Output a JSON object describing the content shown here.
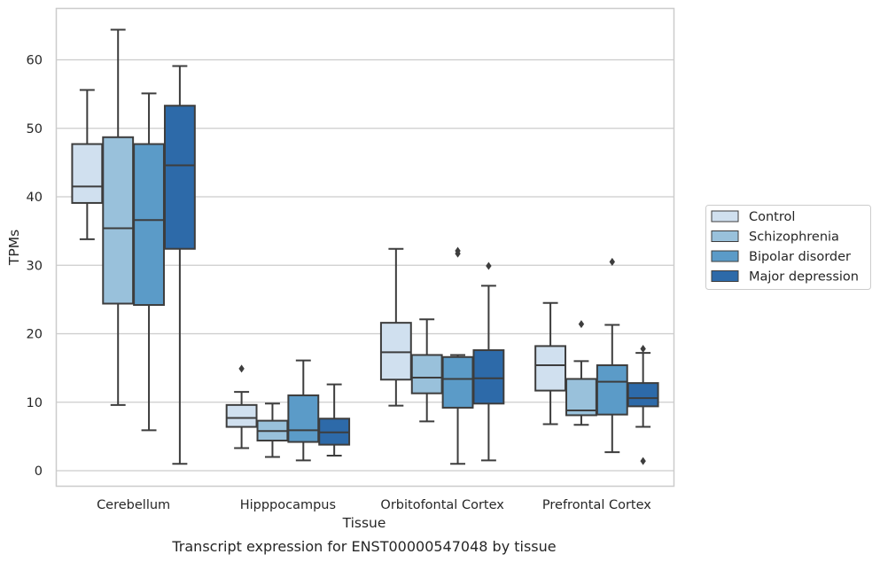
{
  "chart_data": {
    "type": "box",
    "title": "",
    "caption": "Transcript expression for ENST00000547048 by tissue",
    "xlabel": "Tissue",
    "ylabel": "TPMs",
    "ylim": [
      -2,
      67
    ],
    "yticks": [
      0,
      10,
      20,
      30,
      40,
      50,
      60
    ],
    "grid": "horizontal",
    "legend_position": "right",
    "categories": [
      "Cerebellum",
      "Hipppocampus",
      "Orbitofontal Cortex",
      "Prefrontal Cortex"
    ],
    "series": [
      {
        "name": "Control",
        "color": "#d0e0ef",
        "boxes": [
          {
            "whislo": 33.8,
            "q1": 39.1,
            "med": 41.5,
            "q3": 47.7,
            "whishi": 55.6,
            "fliers": []
          },
          {
            "whislo": 3.3,
            "q1": 6.4,
            "med": 7.7,
            "q3": 9.6,
            "whishi": 11.5,
            "fliers": [
              14.9
            ]
          },
          {
            "whislo": 9.5,
            "q1": 13.3,
            "med": 17.3,
            "q3": 21.6,
            "whishi": 32.4,
            "fliers": []
          },
          {
            "whislo": 6.8,
            "q1": 11.7,
            "med": 15.4,
            "q3": 18.2,
            "whishi": 24.5,
            "fliers": []
          }
        ]
      },
      {
        "name": "Schizophrenia",
        "color": "#99c1db",
        "boxes": [
          {
            "whislo": 9.6,
            "q1": 24.4,
            "med": 35.4,
            "q3": 48.7,
            "whishi": 64.4,
            "fliers": []
          },
          {
            "whislo": 2.0,
            "q1": 4.4,
            "med": 5.8,
            "q3": 7.3,
            "whishi": 9.8,
            "fliers": []
          },
          {
            "whislo": 7.2,
            "q1": 11.3,
            "med": 13.6,
            "q3": 16.9,
            "whishi": 22.1,
            "fliers": []
          },
          {
            "whislo": 6.7,
            "q1": 8.1,
            "med": 8.8,
            "q3": 13.4,
            "whishi": 16.0,
            "fliers": [
              21.4
            ]
          }
        ]
      },
      {
        "name": "Bipolar disorder",
        "color": "#5b9bc8",
        "boxes": [
          {
            "whislo": 5.9,
            "q1": 24.2,
            "med": 36.6,
            "q3": 47.7,
            "whishi": 55.1,
            "fliers": []
          },
          {
            "whislo": 1.5,
            "q1": 4.2,
            "med": 5.9,
            "q3": 11.0,
            "whishi": 16.1,
            "fliers": []
          },
          {
            "whislo": 1.0,
            "q1": 9.2,
            "med": 13.4,
            "q3": 16.6,
            "whishi": 16.9,
            "fliers": [
              31.7,
              32.1
            ]
          },
          {
            "whislo": 2.7,
            "q1": 8.2,
            "med": 13.0,
            "q3": 15.4,
            "whishi": 21.3,
            "fliers": [
              30.5
            ]
          }
        ]
      },
      {
        "name": "Major depression",
        "color": "#2d6aa9",
        "boxes": [
          {
            "whislo": 1.0,
            "q1": 32.4,
            "med": 44.6,
            "q3": 53.3,
            "whishi": 59.1,
            "fliers": []
          },
          {
            "whislo": 2.2,
            "q1": 3.8,
            "med": 5.6,
            "q3": 7.6,
            "whishi": 12.6,
            "fliers": []
          },
          {
            "whislo": 1.5,
            "q1": 9.8,
            "med": 13.5,
            "q3": 17.6,
            "whishi": 27.0,
            "fliers": [
              29.9
            ]
          },
          {
            "whislo": 6.4,
            "q1": 9.4,
            "med": 10.6,
            "q3": 12.8,
            "whishi": 17.2,
            "fliers": [
              17.8,
              1.4
            ]
          }
        ]
      }
    ]
  }
}
